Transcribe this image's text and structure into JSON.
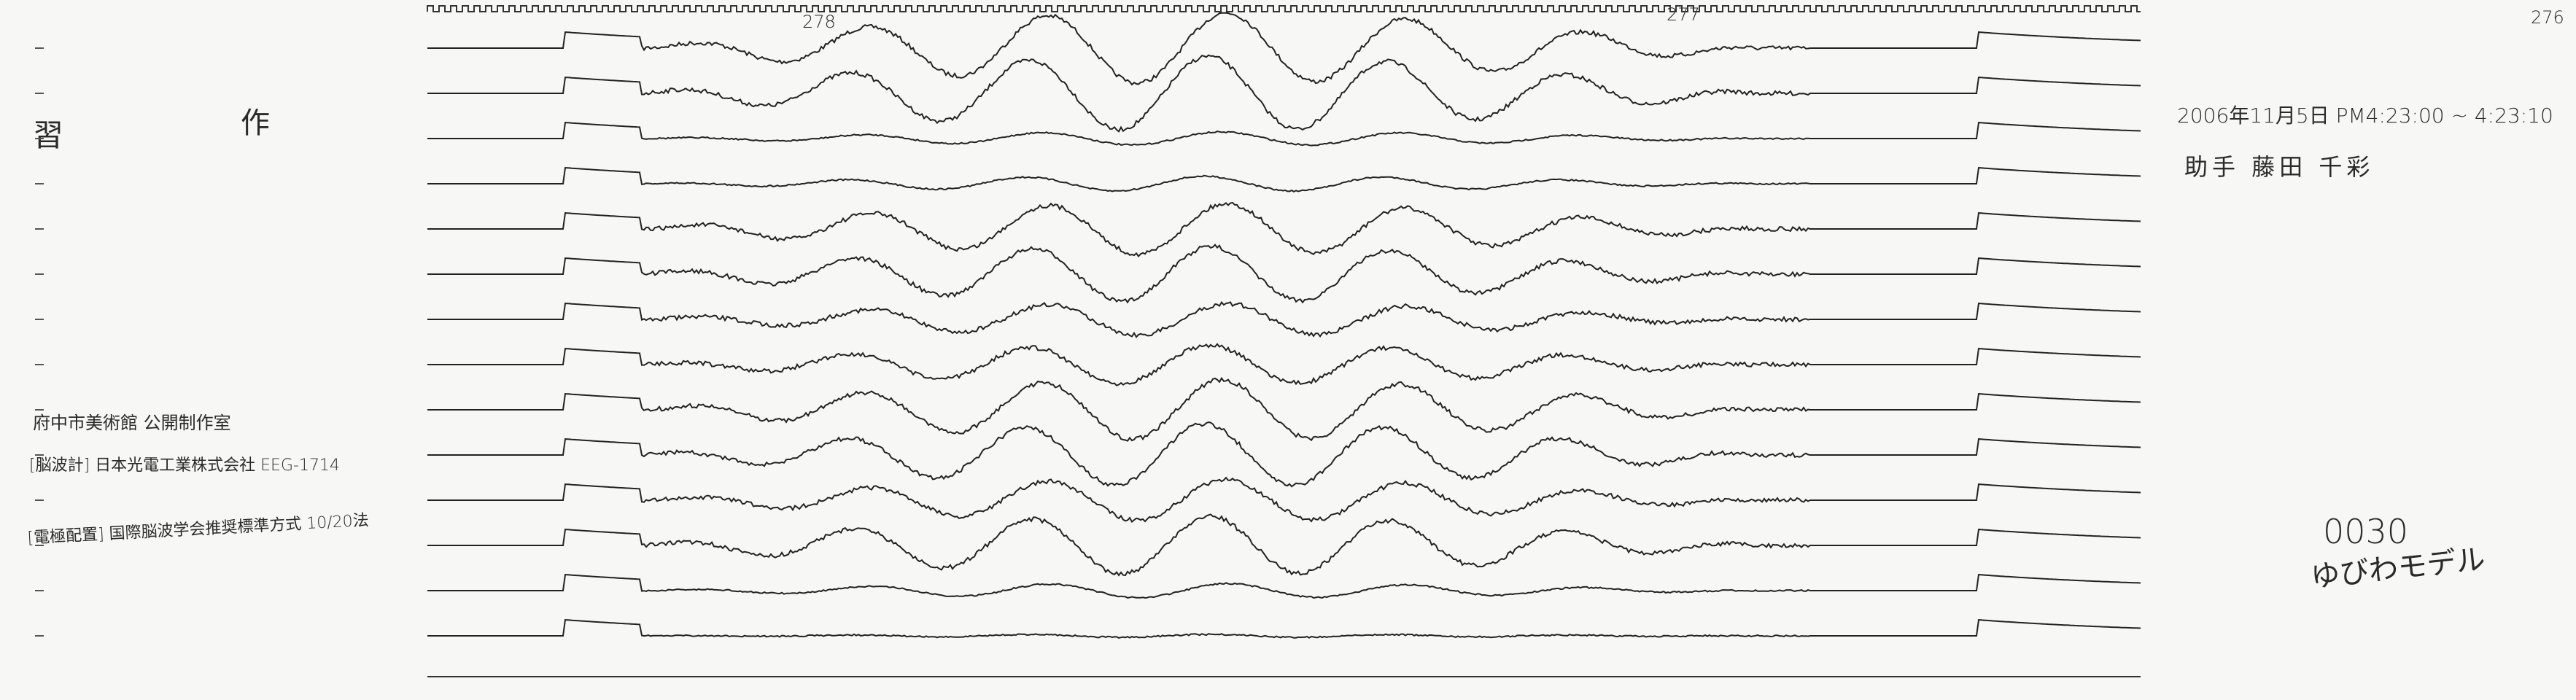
{
  "page_number": "276",
  "sheet_marks": [
    "278",
    "277"
  ],
  "title": [
    "習",
    "作"
  ],
  "datetime": "2006年11月5日 PM4:23:00 ~ 4:23:10",
  "assistant": "助手 藤田 千彩",
  "notes": [
    "府中市美術館 公開制作室",
    "[脳波計] 日本光電工業株式会社 EEG-1714",
    "[電極配置] 国際脳波学会推奨標準方式 10/20法"
  ],
  "code": "0030",
  "model": "ゆびわモデル"
}
